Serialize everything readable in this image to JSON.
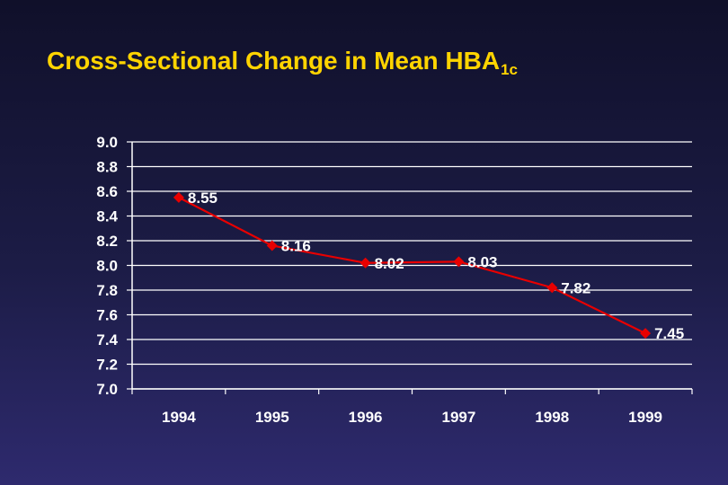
{
  "title": {
    "main": "Cross-Sectional Change in Mean HBA",
    "subscript": "1c"
  },
  "colors": {
    "title": "#ffd400",
    "series": "#e80000",
    "grid": "#ffffff",
    "text": "#ffffff"
  },
  "chart_data": {
    "type": "line",
    "title": "Cross-Sectional Change in Mean HBA1c",
    "categories": [
      "1994",
      "1995",
      "1996",
      "1997",
      "1998",
      "1999"
    ],
    "series": [
      {
        "values": [
          8.55,
          8.16,
          8.02,
          8.03,
          7.82,
          7.45
        ]
      }
    ],
    "data_labels": [
      "8.55",
      "8.16",
      "8.02",
      "8.03",
      "7.82",
      "7.45"
    ],
    "y_ticks": [
      "7.0",
      "7.2",
      "7.4",
      "7.6",
      "7.8",
      "8.0",
      "8.2",
      "8.4",
      "8.6",
      "8.8",
      "9.0"
    ],
    "ylim": [
      7.0,
      9.0
    ],
    "grid": true,
    "legend": "none",
    "marker": "diamond"
  }
}
